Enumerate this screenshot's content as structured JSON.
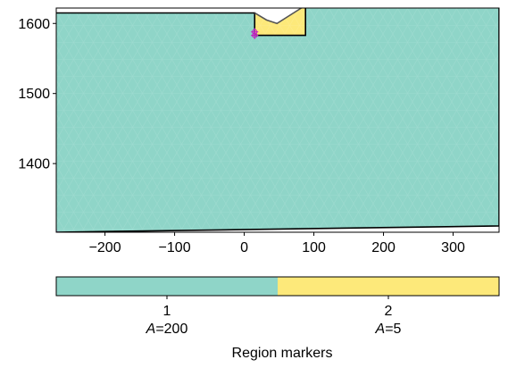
{
  "chart_data": {
    "type": "mesh",
    "xlim": [
      -270,
      366
    ],
    "ylim": [
      1302,
      1622
    ],
    "x_ticks": [
      -200,
      -100,
      0,
      100,
      200,
      300
    ],
    "y_ticks": [
      1400,
      1500,
      1600
    ],
    "regions": [
      {
        "marker": "1",
        "area_label": "A=200",
        "color": "#8fd5c8",
        "polygon": [
          [
            -270,
            1302
          ],
          [
            366,
            1311
          ],
          [
            366,
            1622
          ],
          [
            88,
            1622
          ],
          [
            88,
            1583
          ],
          [
            15,
            1583
          ],
          [
            15,
            1615
          ],
          [
            -270,
            1615
          ]
        ]
      },
      {
        "marker": "2",
        "area_label": "A=5",
        "color": "#fde97a",
        "polygon": [
          [
            15,
            1583
          ],
          [
            88,
            1583
          ],
          [
            88,
            1622
          ],
          [
            82,
            1622
          ],
          [
            47,
            1600
          ],
          [
            32,
            1605
          ],
          [
            15,
            1615
          ]
        ]
      }
    ],
    "surface_line": [
      [
        15,
        1615
      ],
      [
        32,
        1605
      ],
      [
        47,
        1600
      ],
      [
        82,
        1622
      ]
    ],
    "region_points": [
      [
        15,
        1588
      ],
      [
        15,
        1583
      ]
    ],
    "boundary_marker_point": [
      -270,
      1302
    ],
    "colorbar": {
      "title": "Region markers",
      "entries": [
        {
          "label": "1",
          "sublabel_italic": "A",
          "sublabel_rest": "=200",
          "color": "#8fd5c8"
        },
        {
          "label": "2",
          "sublabel_italic": "A",
          "sublabel_rest": "=5",
          "color": "#fde97a"
        }
      ]
    }
  }
}
